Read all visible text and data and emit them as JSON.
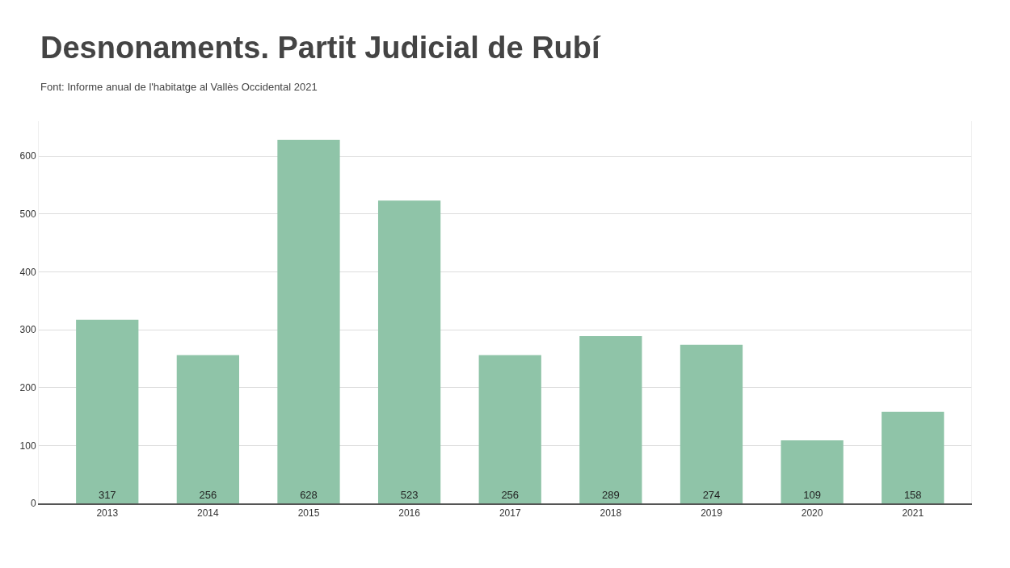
{
  "chart_data": {
    "type": "bar",
    "title": "Desnonaments. Partit Judicial de Rubí",
    "subtitle": "Font: Informe anual de l'habitatge al Vallès Occidental 2021",
    "categories": [
      "2013",
      "2014",
      "2015",
      "2016",
      "2017",
      "2018",
      "2019",
      "2020",
      "2021"
    ],
    "values": [
      317,
      256,
      628,
      523,
      256,
      289,
      274,
      109,
      158
    ],
    "color": "#8fc4a8",
    "ylim": [
      0,
      660
    ],
    "yticks": [
      0,
      100,
      200,
      300,
      400,
      500,
      600
    ],
    "grid": "y",
    "data_labels": true
  }
}
